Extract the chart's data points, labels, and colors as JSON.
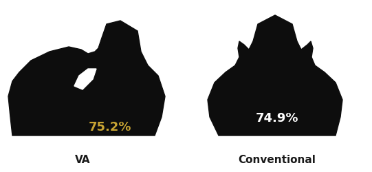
{
  "va_value": "75.2%",
  "conv_value": "74.9%",
  "va_label": "VA",
  "conv_label": "Conventional",
  "silhouette_color": "#0d0d0d",
  "va_text_color": "#C8A433",
  "conv_text_color": "#ffffff",
  "bg_color": "#ffffff",
  "label_color": "#1a1a1a",
  "value_fontsize": 13,
  "label_fontsize": 11,
  "label_fontweight": "bold"
}
